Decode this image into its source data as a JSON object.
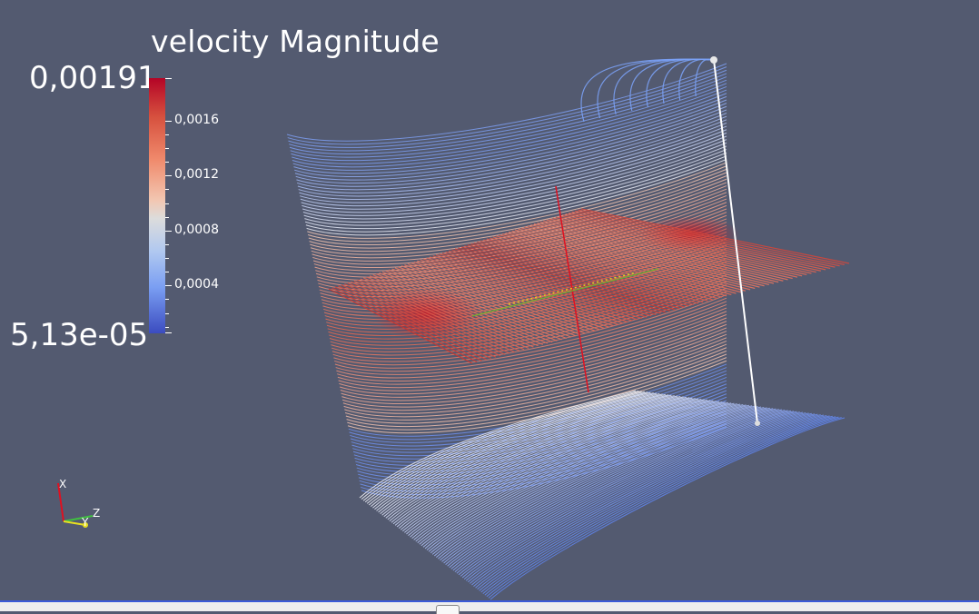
{
  "colorbar": {
    "title": "velocity Magnitude",
    "max_label": "0,00191",
    "min_label": "5,13e-05",
    "ticks": [
      {
        "label": "0,0016",
        "value": 0.0016
      },
      {
        "label": "0,0012",
        "value": 0.0012
      },
      {
        "label": "0,0008",
        "value": 0.0008
      },
      {
        "label": "0,0004",
        "value": 0.0004
      }
    ],
    "range": [
      5.13e-05,
      0.00191
    ],
    "colors": {
      "high": "#b40426",
      "mid": "#dddddd",
      "low": "#3b4cc0"
    }
  },
  "orientation_axes": {
    "x_label": "X",
    "y_label": "Y",
    "z_label": "Z"
  },
  "colors": {
    "background": "#535a70",
    "status_accent": "#3a5ad8"
  }
}
